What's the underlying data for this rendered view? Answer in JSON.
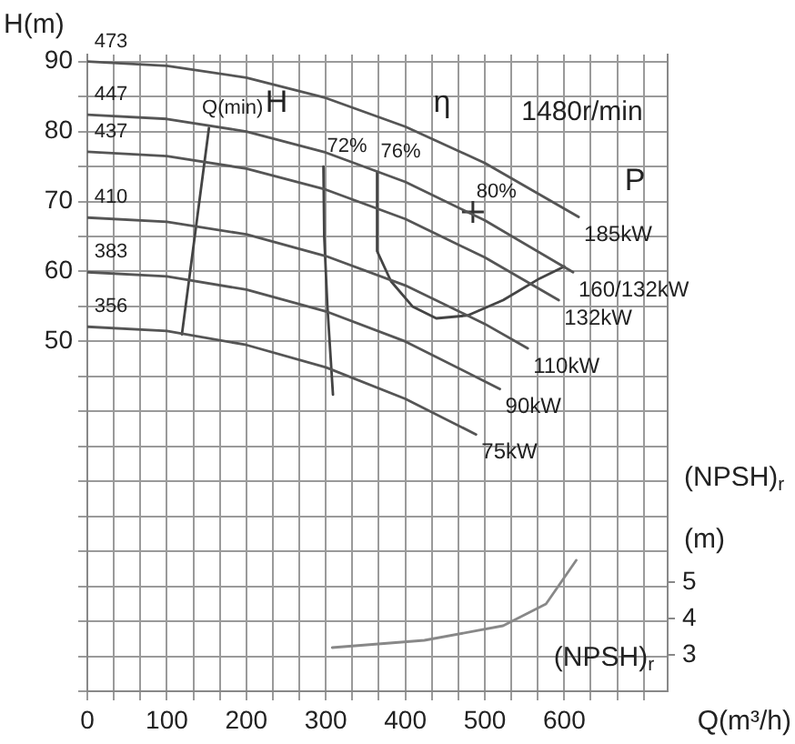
{
  "chart_data": {
    "type": "line",
    "xlabel": "Q(m³/h)",
    "ylabel": "H(m)",
    "y2label": "(NPSH)$_{r}$ (m)",
    "xlim": [
      0,
      730
    ],
    "xticks": [
      0,
      {
        "value": 33.3,
        "label": null
      },
      {
        "value": 66.7,
        "label": null
      },
      100,
      {
        "value": 133.3,
        "label": null
      },
      {
        "value": 166.7,
        "label": null
      },
      200,
      {
        "value": 233.3,
        "label": null
      },
      {
        "value": 266.7,
        "label": null
      },
      300,
      {
        "value": 333.3,
        "label": null
      },
      {
        "value": 366.7,
        "label": null
      },
      400,
      {
        "value": 433.3,
        "label": null
      },
      {
        "value": 466.7,
        "label": null
      },
      500,
      {
        "value": 533.3,
        "label": null
      },
      {
        "value": 566.7,
        "label": null
      },
      600,
      {
        "value": 633.3,
        "label": null
      },
      {
        "value": 666.7,
        "label": null
      },
      {
        "value": 700,
        "label": null
      }
    ],
    "ylim": [
      0,
      91
    ],
    "yticks": [
      {
        "value": 0,
        "label": null
      },
      {
        "value": 5,
        "label": null
      },
      {
        "value": 10,
        "label": null
      },
      {
        "value": 15,
        "label": null
      },
      {
        "value": 20,
        "label": null
      },
      {
        "value": 25,
        "label": null
      },
      {
        "value": 30,
        "label": null
      },
      {
        "value": 35,
        "label": null
      },
      {
        "value": 40,
        "label": null
      },
      {
        "value": 45,
        "label": null
      },
      50,
      {
        "value": 55,
        "label": null
      },
      60,
      {
        "value": 65,
        "label": null
      },
      70,
      {
        "value": 75,
        "label": null
      },
      80,
      {
        "value": 85,
        "label": null
      },
      90
    ],
    "y2lim": [
      2,
      19.5
    ],
    "y2ticks": [
      3,
      4,
      5
    ],
    "grid": true,
    "marker": "none",
    "line_style": "solid",
    "series": [
      {
        "name": "473",
        "color": "#555555",
        "x": [
          0,
          100,
          200,
          300,
          400,
          500,
          618
        ],
        "values": [
          90,
          89.4,
          87.7,
          84.8,
          80.7,
          75.5,
          67.8
        ]
      },
      {
        "name": "447",
        "color": "#555555",
        "x": [
          0,
          100,
          200,
          300,
          400,
          500,
          611
        ],
        "values": [
          82.4,
          81.8,
          80,
          77,
          72.8,
          67.3,
          59.9
        ]
      },
      {
        "name": "437",
        "color": "#555555",
        "x": [
          0,
          100,
          200,
          300,
          400,
          500,
          593
        ],
        "values": [
          77.1,
          76.5,
          74.7,
          71.7,
          67.5,
          62,
          55.9
        ]
      },
      {
        "name": "410",
        "color": "#555555",
        "x": [
          0,
          100,
          200,
          300,
          400,
          500,
          554
        ],
        "values": [
          67.7,
          67.1,
          65.3,
          62.2,
          58,
          52.5,
          49
        ]
      },
      {
        "name": "383",
        "color": "#555555",
        "x": [
          0,
          100,
          200,
          300,
          400,
          519
        ],
        "values": [
          59.9,
          59.3,
          57.4,
          54.3,
          50,
          43.2
        ]
      },
      {
        "name": "356",
        "color": "#555555",
        "x": [
          0,
          100,
          200,
          300,
          400,
          489
        ],
        "values": [
          52.1,
          51.5,
          49.5,
          46.3,
          41.8,
          36.7
        ]
      },
      {
        "name": "72%",
        "color": "#444444",
        "x": [
          297,
          298,
          302,
          309
        ],
        "values": [
          75,
          65,
          55,
          42.4
        ]
      },
      {
        "name": "76%",
        "color": "#444444",
        "x": [
          364.5,
          364.5,
          382,
          409,
          439,
          478,
          523,
          569,
          600
        ],
        "values": [
          74.2,
          62.9,
          58.6,
          55,
          53.3,
          53.7,
          55.9,
          59,
          60.7
        ]
      },
      {
        "name": "80%",
        "type": "scatter",
        "marker": "cross",
        "color": "#333333",
        "x": [
          485
        ],
        "values": [
          68.5
        ]
      },
      {
        "name": "Q(min)",
        "color": "#444444",
        "x": [
          153,
          119
        ],
        "values": [
          80.5,
          51
        ]
      },
      {
        "color": "#888888",
        "axis": "y2",
        "x": [
          308,
          424,
          523,
          577,
          615
        ],
        "values": [
          3.2,
          3.4,
          3.8,
          4.4,
          5.6
        ]
      }
    ],
    "annotations": [
      "H",
      "η",
      "1480r/min",
      "P",
      "(NPSH)$_{r}$",
      {
        "text": "185kW",
        "x": 618,
        "y": 67.8
      },
      {
        "text": "160/132kW",
        "x": 611,
        "y": 59.9
      },
      {
        "text": "132kW",
        "x": 593,
        "y": 55.9
      },
      {
        "text": "110kW",
        "x": 554,
        "y": 49
      },
      {
        "text": "90kW",
        "x": 519,
        "y": 43.2
      },
      {
        "text": "75kW",
        "x": 489,
        "y": 36.7
      }
    ]
  }
}
